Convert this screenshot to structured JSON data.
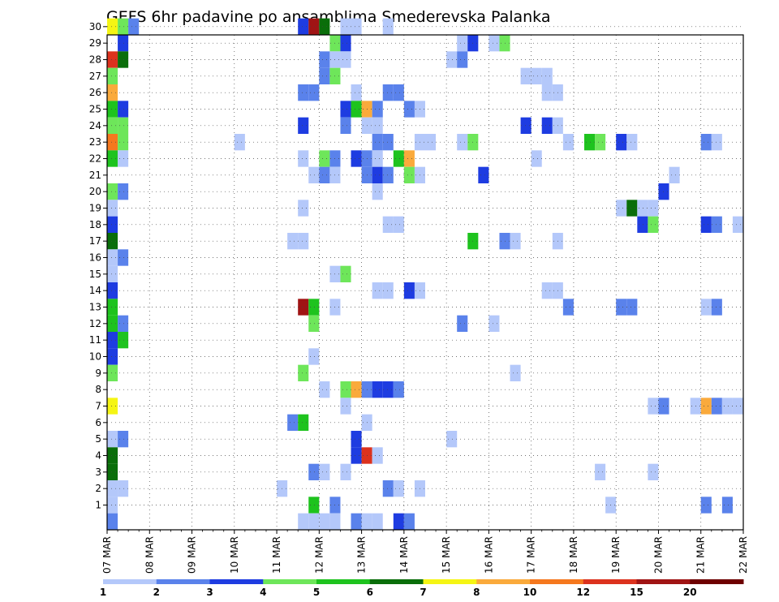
{
  "chart_data": {
    "type": "heatmap",
    "title": "GEFS 6hr padavine po ansamblima Smederevska Palanka",
    "x_tick_labels": [
      "07 MAR",
      "08 MAR",
      "09 MAR",
      "10 MAR",
      "11 MAR",
      "12 MAR",
      "13 MAR",
      "14 MAR",
      "15 MAR",
      "16 MAR",
      "17 MAR",
      "18 MAR",
      "19 MAR",
      "20 MAR",
      "21 MAR",
      "22 MAR"
    ],
    "y_tick_labels": [
      "1",
      "2",
      "3",
      "4",
      "5",
      "6",
      "7",
      "8",
      "9",
      "10",
      "11",
      "12",
      "13",
      "14",
      "15",
      "16",
      "17",
      "18",
      "19",
      "20",
      "21",
      "22",
      "23",
      "24",
      "25",
      "26",
      "27",
      "28",
      "29",
      "30"
    ],
    "xlim": [
      "07 MAR 00Z",
      "22 MAR 00Z"
    ],
    "ylim": [
      0,
      30
    ],
    "grid": true,
    "colorbar_labels": [
      "1",
      "2",
      "3",
      "4",
      "5",
      "6",
      "7",
      "8",
      "10",
      "12",
      "15",
      "20"
    ],
    "colors": [
      "#b4c8fa",
      "#5a82eb",
      "#1e3ce1",
      "#6ee65a",
      "#1ec31e",
      "#0a6e0a",
      "#f5f514",
      "#faaa3c",
      "#f5781e",
      "#dc321e",
      "#a01414",
      "#6e0000"
    ],
    "levels": {
      "1": "1 to 2 mm",
      "2": "2 to 3 mm",
      "3": "3 to 4 mm",
      "4": "4 to 5 mm",
      "5": "5 to 6 mm",
      "6": "6 to 7 mm",
      "7": "7 to 8 mm",
      "8": "8 to 10 mm",
      "9": "10 to 12 mm",
      "10": "12 to 15 mm",
      "11": "15 to 20 mm",
      "12": "above 20 mm"
    },
    "cells_format": "[member, time_step, level] — time_step counts 6-hour steps starting at 07 MAR 00Z",
    "cells": [
      [
        30,
        0,
        7
      ],
      [
        30,
        1,
        4
      ],
      [
        30,
        2,
        2
      ],
      [
        30,
        18,
        3
      ],
      [
        30,
        19,
        11
      ],
      [
        30,
        20,
        6
      ],
      [
        30,
        22,
        1
      ],
      [
        30,
        23,
        1
      ],
      [
        30,
        26,
        1
      ],
      [
        29,
        1,
        3
      ],
      [
        29,
        21,
        4
      ],
      [
        29,
        22,
        3
      ],
      [
        29,
        33,
        1
      ],
      [
        29,
        34,
        3
      ],
      [
        29,
        36,
        1
      ],
      [
        29,
        37,
        4
      ],
      [
        28,
        0,
        10
      ],
      [
        28,
        1,
        6
      ],
      [
        28,
        20,
        2
      ],
      [
        28,
        21,
        1
      ],
      [
        28,
        22,
        1
      ],
      [
        28,
        32,
        1
      ],
      [
        28,
        33,
        2
      ],
      [
        27,
        0,
        4
      ],
      [
        27,
        20,
        2
      ],
      [
        27,
        21,
        4
      ],
      [
        27,
        39,
        1
      ],
      [
        27,
        40,
        1
      ],
      [
        27,
        41,
        1
      ],
      [
        26,
        0,
        8
      ],
      [
        26,
        18,
        2
      ],
      [
        26,
        19,
        2
      ],
      [
        26,
        23,
        1
      ],
      [
        26,
        26,
        2
      ],
      [
        26,
        27,
        2
      ],
      [
        26,
        41,
        1
      ],
      [
        26,
        42,
        1
      ],
      [
        25,
        0,
        5
      ],
      [
        25,
        1,
        3
      ],
      [
        25,
        22,
        3
      ],
      [
        25,
        23,
        5
      ],
      [
        25,
        24,
        8
      ],
      [
        25,
        25,
        2
      ],
      [
        25,
        28,
        2
      ],
      [
        25,
        29,
        1
      ],
      [
        24,
        0,
        4
      ],
      [
        24,
        1,
        4
      ],
      [
        24,
        18,
        3
      ],
      [
        24,
        22,
        2
      ],
      [
        24,
        24,
        1
      ],
      [
        24,
        25,
        1
      ],
      [
        24,
        39,
        3
      ],
      [
        24,
        41,
        3
      ],
      [
        24,
        42,
        1
      ],
      [
        23,
        0,
        9
      ],
      [
        23,
        1,
        4
      ],
      [
        23,
        12,
        1
      ],
      [
        23,
        25,
        2
      ],
      [
        23,
        26,
        2
      ],
      [
        23,
        29,
        1
      ],
      [
        23,
        30,
        1
      ],
      [
        23,
        33,
        1
      ],
      [
        23,
        34,
        4
      ],
      [
        23,
        43,
        1
      ],
      [
        23,
        45,
        5
      ],
      [
        23,
        46,
        4
      ],
      [
        23,
        48,
        3
      ],
      [
        23,
        49,
        1
      ],
      [
        23,
        56,
        2
      ],
      [
        23,
        57,
        1
      ],
      [
        22,
        0,
        5
      ],
      [
        22,
        1,
        1
      ],
      [
        22,
        18,
        1
      ],
      [
        22,
        20,
        4
      ],
      [
        22,
        21,
        2
      ],
      [
        22,
        23,
        3
      ],
      [
        22,
        24,
        2
      ],
      [
        22,
        25,
        1
      ],
      [
        22,
        27,
        5
      ],
      [
        22,
        28,
        8
      ],
      [
        22,
        40,
        1
      ],
      [
        21,
        19,
        1
      ],
      [
        21,
        20,
        2
      ],
      [
        21,
        21,
        1
      ],
      [
        21,
        24,
        2
      ],
      [
        21,
        25,
        3
      ],
      [
        21,
        26,
        2
      ],
      [
        21,
        28,
        4
      ],
      [
        21,
        29,
        1
      ],
      [
        21,
        35,
        3
      ],
      [
        21,
        53,
        1
      ],
      [
        20,
        0,
        4
      ],
      [
        20,
        1,
        2
      ],
      [
        20,
        25,
        1
      ],
      [
        20,
        52,
        3
      ],
      [
        19,
        0,
        1
      ],
      [
        19,
        18,
        1
      ],
      [
        19,
        48,
        1
      ],
      [
        19,
        49,
        6
      ],
      [
        19,
        50,
        1
      ],
      [
        19,
        51,
        1
      ],
      [
        18,
        0,
        3
      ],
      [
        18,
        26,
        1
      ],
      [
        18,
        27,
        1
      ],
      [
        18,
        50,
        3
      ],
      [
        18,
        51,
        4
      ],
      [
        18,
        56,
        3
      ],
      [
        18,
        57,
        2
      ],
      [
        18,
        59,
        1
      ],
      [
        17,
        0,
        6
      ],
      [
        17,
        17,
        1
      ],
      [
        17,
        18,
        1
      ],
      [
        17,
        34,
        5
      ],
      [
        17,
        37,
        2
      ],
      [
        17,
        38,
        1
      ],
      [
        17,
        42,
        1
      ],
      [
        16,
        0,
        1
      ],
      [
        16,
        1,
        2
      ],
      [
        15,
        0,
        1
      ],
      [
        15,
        21,
        1
      ],
      [
        15,
        22,
        4
      ],
      [
        14,
        0,
        3
      ],
      [
        14,
        25,
        1
      ],
      [
        14,
        26,
        1
      ],
      [
        14,
        28,
        3
      ],
      [
        14,
        29,
        1
      ],
      [
        14,
        41,
        1
      ],
      [
        14,
        42,
        1
      ],
      [
        13,
        0,
        5
      ],
      [
        13,
        18,
        11
      ],
      [
        13,
        19,
        5
      ],
      [
        13,
        21,
        1
      ],
      [
        13,
        43,
        2
      ],
      [
        13,
        48,
        2
      ],
      [
        13,
        49,
        2
      ],
      [
        13,
        56,
        1
      ],
      [
        13,
        57,
        2
      ],
      [
        12,
        0,
        5
      ],
      [
        12,
        1,
        2
      ],
      [
        12,
        19,
        4
      ],
      [
        12,
        33,
        2
      ],
      [
        12,
        36,
        1
      ],
      [
        11,
        0,
        3
      ],
      [
        11,
        1,
        5
      ],
      [
        10,
        0,
        3
      ],
      [
        10,
        19,
        1
      ],
      [
        9,
        0,
        4
      ],
      [
        9,
        18,
        4
      ],
      [
        9,
        38,
        1
      ],
      [
        8,
        20,
        1
      ],
      [
        8,
        22,
        4
      ],
      [
        8,
        23,
        8
      ],
      [
        8,
        24,
        2
      ],
      [
        8,
        25,
        3
      ],
      [
        8,
        26,
        3
      ],
      [
        8,
        27,
        2
      ],
      [
        7,
        0,
        7
      ],
      [
        7,
        22,
        1
      ],
      [
        7,
        51,
        1
      ],
      [
        7,
        52,
        2
      ],
      [
        7,
        55,
        1
      ],
      [
        7,
        56,
        8
      ],
      [
        7,
        57,
        2
      ],
      [
        7,
        58,
        1
      ],
      [
        7,
        59,
        1
      ],
      [
        6,
        17,
        2
      ],
      [
        6,
        18,
        5
      ],
      [
        6,
        24,
        1
      ],
      [
        5,
        0,
        1
      ],
      [
        5,
        1,
        2
      ],
      [
        5,
        23,
        3
      ],
      [
        5,
        32,
        1
      ],
      [
        4,
        0,
        6
      ],
      [
        4,
        23,
        3
      ],
      [
        4,
        24,
        10
      ],
      [
        4,
        25,
        1
      ],
      [
        3,
        0,
        6
      ],
      [
        3,
        19,
        2
      ],
      [
        3,
        20,
        1
      ],
      [
        3,
        22,
        1
      ],
      [
        3,
        46,
        1
      ],
      [
        3,
        51,
        1
      ],
      [
        2,
        0,
        1
      ],
      [
        2,
        1,
        1
      ],
      [
        2,
        16,
        1
      ],
      [
        2,
        26,
        2
      ],
      [
        2,
        27,
        1
      ],
      [
        2,
        29,
        1
      ],
      [
        1,
        0,
        1
      ],
      [
        1,
        19,
        5
      ],
      [
        1,
        21,
        2
      ],
      [
        1,
        47,
        1
      ],
      [
        1,
        56,
        2
      ],
      [
        1,
        58,
        2
      ],
      [
        0,
        0,
        2
      ],
      [
        0,
        18,
        1
      ],
      [
        0,
        19,
        1
      ],
      [
        0,
        20,
        1
      ],
      [
        0,
        21,
        1
      ],
      [
        0,
        23,
        2
      ],
      [
        0,
        24,
        1
      ],
      [
        0,
        25,
        1
      ],
      [
        0,
        27,
        3
      ],
      [
        0,
        28,
        2
      ]
    ]
  }
}
